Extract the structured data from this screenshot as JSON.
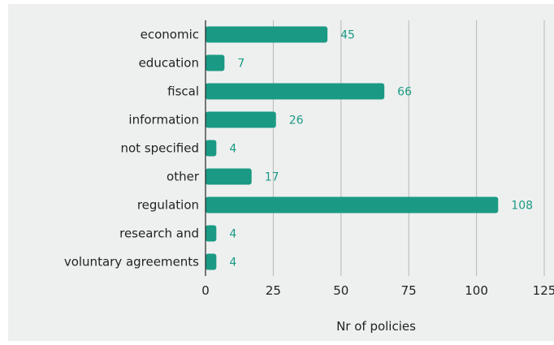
{
  "chart_data": {
    "type": "bar",
    "orientation": "horizontal",
    "categories": [
      "economic",
      "education",
      "fiscal",
      "information",
      "not specified",
      "other",
      "regulation",
      "research and",
      "voluntary agreements"
    ],
    "values": [
      45,
      7,
      66,
      26,
      4,
      17,
      108,
      4,
      4
    ],
    "xlabel": "Nr of policies",
    "ylabel": "",
    "xlim": [
      0,
      125
    ],
    "xticks": [
      "0",
      "25",
      "50",
      "75",
      "100",
      "125"
    ],
    "grid": "vertical",
    "bar_color": "#1a9a84",
    "label_color": "#1a9a84",
    "background": "#eef0f0"
  }
}
